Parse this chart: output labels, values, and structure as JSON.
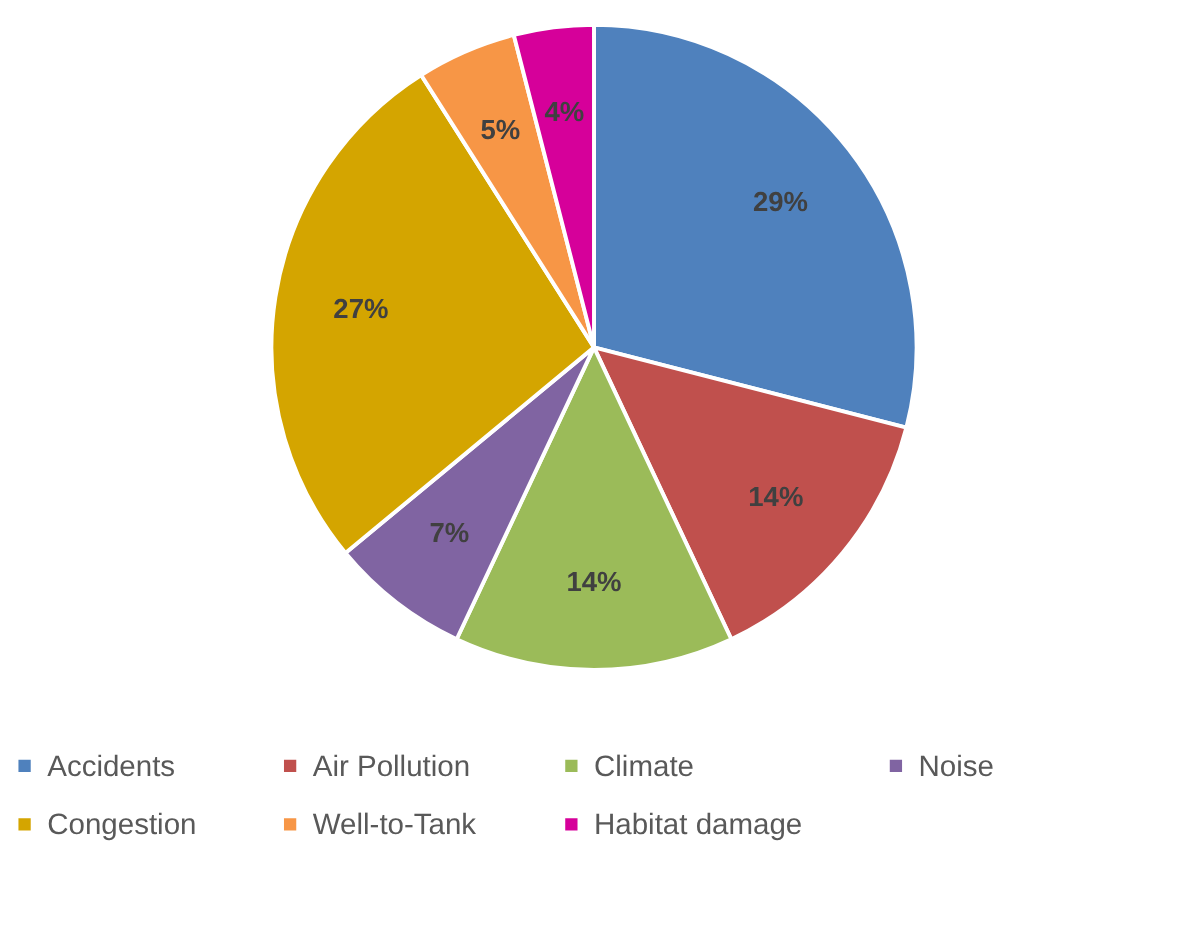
{
  "chart_data": {
    "type": "pie",
    "categories": [
      "Accidents",
      "Air Pollution",
      "Climate",
      "Noise",
      "Congestion",
      "Well-to-Tank",
      "Habitat damage"
    ],
    "values": [
      29,
      14,
      14,
      7,
      27,
      5,
      4
    ],
    "colors": [
      "#4f81bd",
      "#c0504d",
      "#9bbb59",
      "#8064a2",
      "#d4a500",
      "#f79646",
      "#d6009a"
    ],
    "value_labels": [
      "29%",
      "14%",
      "14%",
      "7%",
      "27%",
      "5%",
      "4%"
    ],
    "legend": "bottom"
  }
}
